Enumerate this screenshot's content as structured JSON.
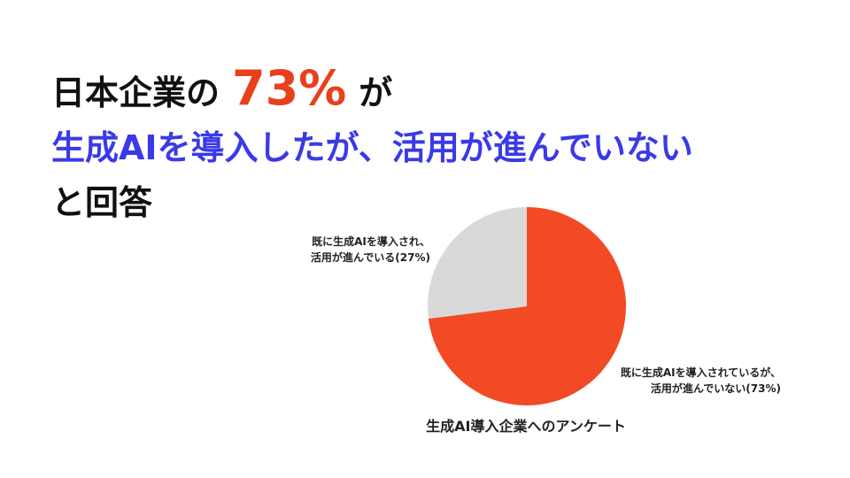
{
  "headline": {
    "line1": [
      "日本企業の",
      "73%",
      "が"
    ],
    "line2": "生成AIを導入したが、活用が進んでいない",
    "line3": "と回答"
  },
  "chart_data": {
    "type": "pie",
    "title": "生成AI導入企業へのアンケート",
    "categories": [
      "既に生成AIを導入されているが、\n活用が進んでいない(73%)",
      "既に生成AIを導入され、\n活用が進んでいる(27%)"
    ],
    "values": [
      73,
      27
    ],
    "colors": [
      "#f24a24",
      "#d9d9d9"
    ]
  }
}
